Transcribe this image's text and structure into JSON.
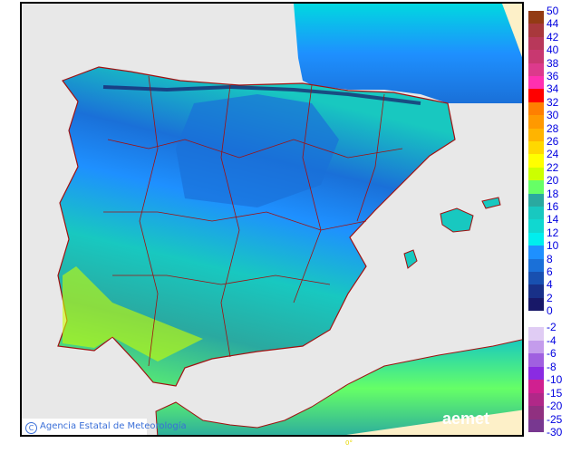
{
  "credit": "Agencia Estatal de Meteorología",
  "logo": "aemet",
  "longitude_label": "0°",
  "legend": {
    "positive": [
      {
        "label": "50",
        "color": "#933b14"
      },
      {
        "label": "44",
        "color": "#a8383c"
      },
      {
        "label": "42",
        "color": "#b8385a"
      },
      {
        "label": "40",
        "color": "#c83870"
      },
      {
        "label": "38",
        "color": "#dc3a8c"
      },
      {
        "label": "36",
        "color": "#ff30b0"
      },
      {
        "label": "34",
        "color": "#ff0000"
      },
      {
        "label": "32",
        "color": "#ff7f00"
      },
      {
        "label": "30",
        "color": "#ff9900"
      },
      {
        "label": "28",
        "color": "#ffb400"
      },
      {
        "label": "26",
        "color": "#ffd800"
      },
      {
        "label": "24",
        "color": "#ffff00"
      },
      {
        "label": "22",
        "color": "#ccff00"
      },
      {
        "label": "20",
        "color": "#66ff66"
      },
      {
        "label": "18",
        "color": "#2aa9a0"
      },
      {
        "label": "16",
        "color": "#18c8c0"
      },
      {
        "label": "14",
        "color": "#10d8d0"
      },
      {
        "label": "12",
        "color": "#00eeee"
      },
      {
        "label": "10",
        "color": "#1e90ff"
      },
      {
        "label": "8",
        "color": "#1a70d8"
      },
      {
        "label": "6",
        "color": "#1850b0"
      },
      {
        "label": "4",
        "color": "#183088"
      },
      {
        "label": "2",
        "color": "#181868"
      },
      {
        "label": "0",
        "color": null
      }
    ],
    "negative": [
      {
        "label": "-2",
        "color": "#e0ccf4"
      },
      {
        "label": "-4",
        "color": "#c49cec"
      },
      {
        "label": "-6",
        "color": "#a060e0"
      },
      {
        "label": "-8",
        "color": "#8a2be2"
      },
      {
        "label": "-10",
        "color": "#d02090"
      },
      {
        "label": "-15",
        "color": "#b02888"
      },
      {
        "label": "-20",
        "color": "#903080"
      },
      {
        "label": "-25",
        "color": "#783890"
      },
      {
        "label": "-30",
        "color": null
      }
    ]
  },
  "colors": {
    "sea": "#e8e8e8",
    "border": "#a01010",
    "nodata": "#fdf0c8"
  }
}
